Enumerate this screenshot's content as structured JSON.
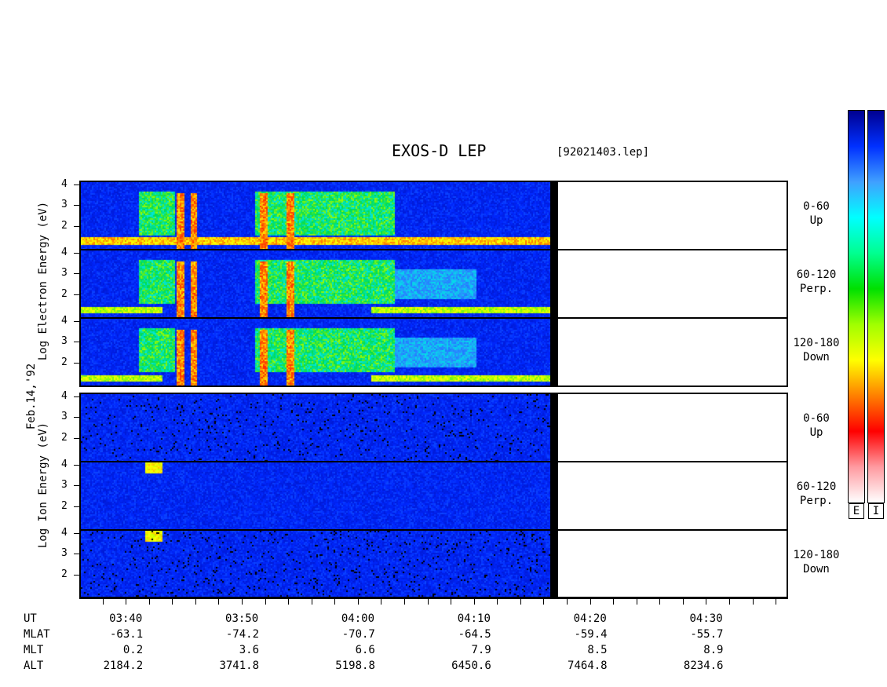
{
  "title": "EXOS-D LEP",
  "filename": "[92021403.lep]",
  "date_label": "Feb.14,'92",
  "electron_ylabel": "Log  Electron  Energy (eV)",
  "ion_ylabel": "Log   Ion  Energy (eV)",
  "colorbar": {
    "labels": [
      "E",
      "I"
    ],
    "colors": [
      "#ffffff",
      "#ff9aa0",
      "#ff0000",
      "#ff8000",
      "#ffff00",
      "#a0ff00",
      "#00e000",
      "#00ff90",
      "#00ffff",
      "#40a0ff",
      "#0030ff",
      "#000090"
    ]
  },
  "chart_data": {
    "type": "heatmap",
    "title": "EXOS-D LEP",
    "x_range": [
      "03:36",
      "04:37"
    ],
    "data_end_time": "04:17",
    "y_range": [
      1,
      4
    ],
    "y_ticks": [
      "4",
      "3",
      "2"
    ],
    "panels": [
      {
        "species": "Electron",
        "angle": "0-60",
        "direction": "Up"
      },
      {
        "species": "Electron",
        "angle": "60-120",
        "direction": "Perp."
      },
      {
        "species": "Electron",
        "angle": "120-180",
        "direction": "Down"
      },
      {
        "species": "Ion",
        "angle": "0-60",
        "direction": "Up"
      },
      {
        "species": "Ion",
        "angle": "60-120",
        "direction": "Perp."
      },
      {
        "species": "Ion",
        "angle": "120-180",
        "direction": "Down"
      }
    ],
    "orbit_labels": [
      "UT",
      "MLAT",
      "MLT",
      "ALT"
    ],
    "orbit_table": [
      {
        "UT": "03:40",
        "MLAT": "-63.1",
        "MLT": "0.2",
        "ALT": "2184.2"
      },
      {
        "UT": "03:50",
        "MLAT": "-74.2",
        "MLT": "3.6",
        "ALT": "3741.8"
      },
      {
        "UT": "04:00",
        "MLAT": "-70.7",
        "MLT": "6.6",
        "ALT": "5198.8"
      },
      {
        "UT": "04:10",
        "MLAT": "-64.5",
        "MLT": "7.9",
        "ALT": "6450.6"
      },
      {
        "UT": "04:20",
        "MLAT": "-59.4",
        "MLT": "8.5",
        "ALT": "7464.8"
      },
      {
        "UT": "04:30",
        "MLAT": "-55.7",
        "MLT": "8.9",
        "ALT": "8234.6"
      }
    ]
  }
}
